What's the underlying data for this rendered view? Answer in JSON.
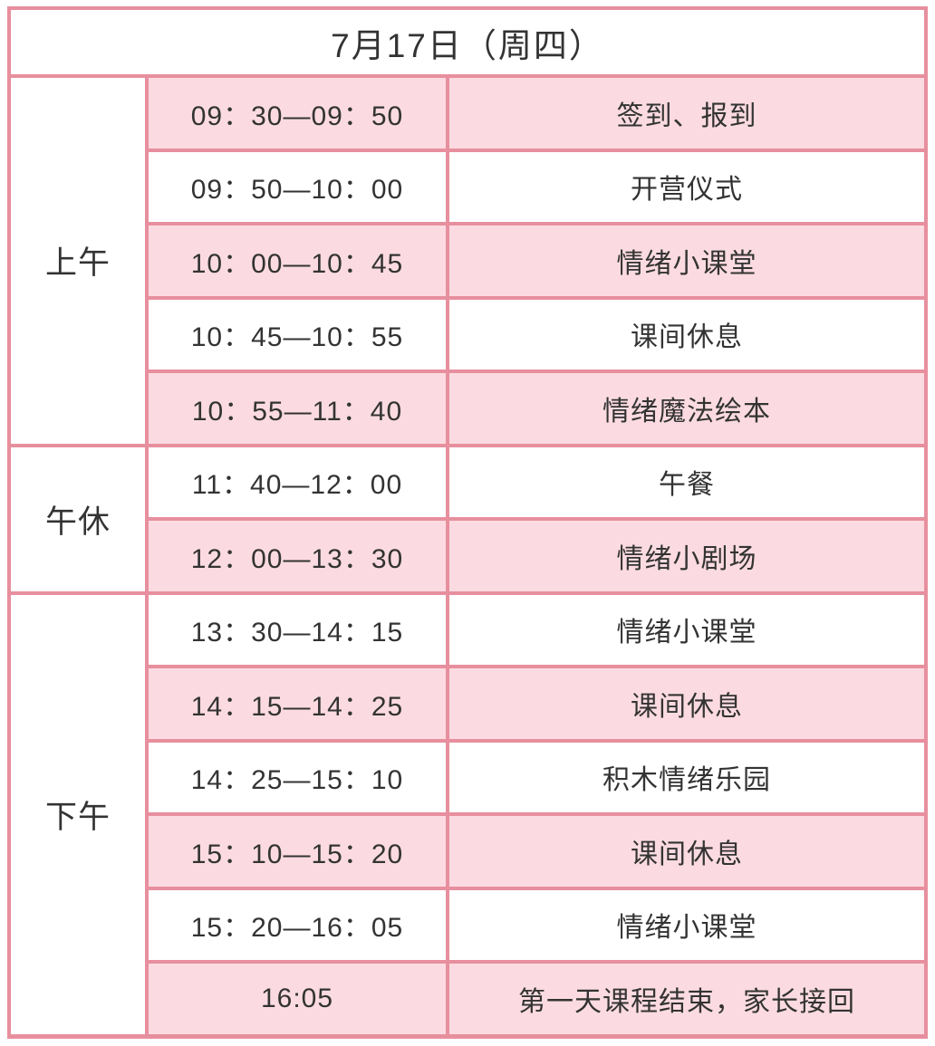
{
  "header": {
    "title": "7月17日（周四）"
  },
  "sections": [
    {
      "id": "morning",
      "label": "上午"
    },
    {
      "id": "noon",
      "label": "午休"
    },
    {
      "id": "afternoon",
      "label": "下午"
    }
  ],
  "rows": [
    {
      "time": "09：30—09：50",
      "activity": "签到、报到"
    },
    {
      "time": "09：50—10：00",
      "activity": "开营仪式"
    },
    {
      "time": "10：00—10：45",
      "activity": "情绪小课堂"
    },
    {
      "time": "10：45—10：55",
      "activity": "课间休息"
    },
    {
      "time": "10：55—11：40",
      "activity": "情绪魔法绘本"
    },
    {
      "time": "11：40—12：00",
      "activity": "午餐"
    },
    {
      "time": "12：00—13：30",
      "activity": "情绪小剧场"
    },
    {
      "time": "13：30—14：15",
      "activity": "情绪小课堂"
    },
    {
      "time": "14：15—14：25",
      "activity": "课间休息"
    },
    {
      "time": "14：25—15：10",
      "activity": "积木情绪乐园"
    },
    {
      "time": "15：10—15：20",
      "activity": "课间休息"
    },
    {
      "time": "15：20—16：05",
      "activity": "情绪小课堂"
    },
    {
      "time": "16:05",
      "activity": "第一天课程结束，家长接回"
    }
  ],
  "colors": {
    "border_pink": "#e78f9e",
    "row_pink": "#fbdbe1",
    "row_white": "#ffffff",
    "text": "#333333"
  }
}
